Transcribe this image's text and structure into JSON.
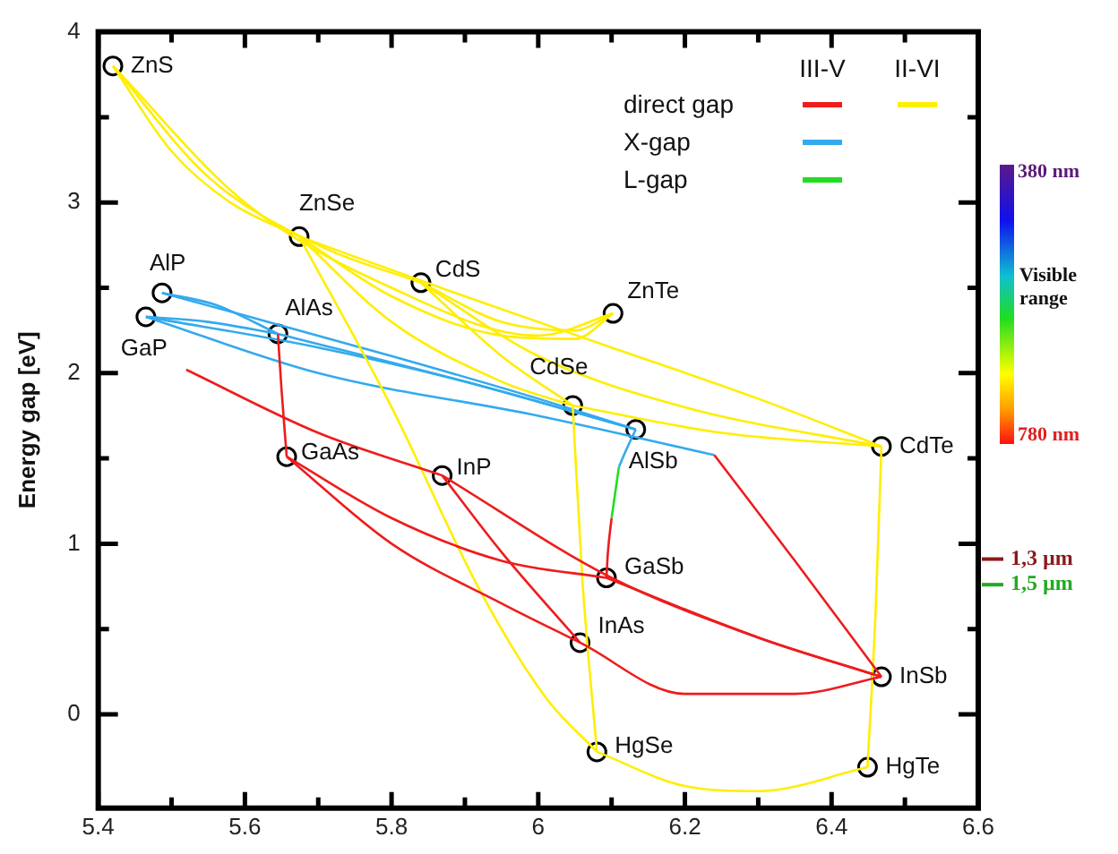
{
  "chart_data": {
    "type": "line",
    "ylabel": "Energy gap [eV]",
    "xlim": [
      5.4,
      6.6
    ],
    "xticks": [
      5.4,
      {
        "value": 5.5,
        "label": null
      },
      5.6,
      {
        "value": 5.7,
        "label": null
      },
      5.8,
      {
        "value": 5.9,
        "label": null
      },
      6,
      {
        "value": 6.1,
        "label": null
      },
      6.2,
      {
        "value": 6.3,
        "label": null
      },
      6.4,
      {
        "value": 6.5,
        "label": null
      },
      6.6
    ],
    "ylim": [
      -0.55,
      4
    ],
    "yticks": [
      0,
      {
        "value": 0.5,
        "label": null
      },
      1,
      {
        "value": 1.5,
        "label": null
      },
      2,
      {
        "value": 2.5,
        "label": null
      },
      3,
      {
        "value": 3.5,
        "label": null
      },
      4
    ],
    "grid": false,
    "marker": "none",
    "line_style": "solid",
    "series": [
      {
        "color": "#ee1c1c",
        "x": [
          5.657,
          5.8,
          5.95,
          6.057
        ],
        "values": [
          1.51,
          1.0,
          0.65,
          0.42
        ]
      },
      {
        "color": "#ffee00",
        "x": [
          5.42,
          5.5,
          5.58,
          5.674
        ],
        "values": [
          3.8,
          3.3,
          3.0,
          2.8
        ]
      },
      {
        "color": "#33aaee",
        "x": [
          5.487,
          5.56,
          5.645
        ],
        "values": [
          2.47,
          2.4,
          2.23
        ]
      },
      {
        "color": "#22dd22",
        "x": [
          6.11,
          6.105,
          6.1
        ],
        "values": [
          1.45,
          1.3,
          1.15
        ]
      },
      {
        "color": "#ee1c1c",
        "x": [
          5.657,
          5.8,
          5.95,
          6.093
        ],
        "values": [
          1.51,
          1.15,
          0.9,
          0.8
        ]
      },
      {
        "color": "#ee1c1c",
        "x": [
          5.869,
          5.95,
          6.057
        ],
        "values": [
          1.4,
          0.95,
          0.42
        ]
      },
      {
        "color": "#ee1c1c",
        "x": [
          5.869,
          6.1,
          6.3,
          6.468
        ],
        "values": [
          1.4,
          0.8,
          0.45,
          0.22
        ]
      },
      {
        "color": "#ee1c1c",
        "x": [
          6.057,
          6.2,
          6.35,
          6.468
        ],
        "values": [
          0.42,
          0.12,
          0.12,
          0.22
        ]
      },
      {
        "color": "#ee1c1c",
        "x": [
          6.093,
          6.3,
          6.468
        ],
        "values": [
          0.8,
          0.45,
          0.22
        ]
      },
      {
        "color": "#ee1c1c",
        "x": [
          5.645,
          5.65,
          5.657
        ],
        "values": [
          2.23,
          1.9,
          1.51
        ]
      },
      {
        "color": "#ee1c1c",
        "x": [
          5.52,
          5.7,
          5.869
        ],
        "values": [
          2.02,
          1.65,
          1.4
        ]
      },
      {
        "color": "#ee1c1c",
        "x": [
          6.24,
          6.35,
          6.468
        ],
        "values": [
          1.52,
          0.9,
          0.22
        ]
      },
      {
        "color": "#ee1c1c",
        "x": [
          6.1,
          6.095,
          6.093
        ],
        "values": [
          1.15,
          0.95,
          0.8
        ]
      },
      {
        "color": "#ffee00",
        "x": [
          5.42,
          5.55,
          5.7,
          5.84
        ],
        "values": [
          3.8,
          3.15,
          2.75,
          2.53
        ]
      },
      {
        "color": "#ffee00",
        "x": [
          5.674,
          5.8,
          5.95,
          6.05,
          6.102
        ],
        "values": [
          2.8,
          2.45,
          2.22,
          2.2,
          2.35
        ]
      },
      {
        "color": "#ffee00",
        "x": [
          5.84,
          5.95,
          6.05,
          6.102
        ],
        "values": [
          2.53,
          2.3,
          2.25,
          2.35
        ]
      },
      {
        "color": "#ffee00",
        "x": [
          5.42,
          5.6,
          5.8,
          6.0,
          6.102
        ],
        "values": [
          3.8,
          3.0,
          2.5,
          2.22,
          2.35
        ]
      },
      {
        "color": "#ffee00",
        "x": [
          5.674,
          5.8,
          5.95,
          6.047
        ],
        "values": [
          2.8,
          2.3,
          1.95,
          1.81
        ]
      },
      {
        "color": "#ffee00",
        "x": [
          5.84,
          5.95,
          6.047
        ],
        "values": [
          2.53,
          2.1,
          1.81
        ]
      },
      {
        "color": "#ffee00",
        "x": [
          5.84,
          6.0,
          6.2,
          6.468
        ],
        "values": [
          2.53,
          2.1,
          1.8,
          1.57
        ]
      },
      {
        "color": "#ffee00",
        "x": [
          5.674,
          5.9,
          6.1,
          6.3,
          6.468
        ],
        "values": [
          2.8,
          2.45,
          2.15,
          1.85,
          1.57
        ]
      },
      {
        "color": "#ffee00",
        "x": [
          6.047,
          6.25,
          6.468
        ],
        "values": [
          1.81,
          1.65,
          1.57
        ]
      },
      {
        "color": "#ffee00",
        "x": [
          5.674,
          5.8,
          5.92,
          6.01,
          6.08
        ],
        "values": [
          2.8,
          1.8,
          0.73,
          0.1,
          -0.22
        ]
      },
      {
        "color": "#ffee00",
        "x": [
          6.047,
          6.06,
          6.08
        ],
        "values": [
          1.81,
          0.8,
          -0.22
        ]
      },
      {
        "color": "#ffee00",
        "x": [
          6.468,
          6.46,
          6.449
        ],
        "values": [
          1.57,
          0.6,
          -0.31
        ]
      },
      {
        "color": "#ffee00",
        "x": [
          6.08,
          6.2,
          6.3,
          6.449
        ],
        "values": [
          -0.22,
          -0.42,
          -0.45,
          -0.31
        ]
      },
      {
        "color": "#33aaee",
        "x": [
          5.465,
          5.55,
          5.645
        ],
        "values": [
          2.33,
          2.3,
          2.23
        ]
      },
      {
        "color": "#33aaee",
        "x": [
          5.487,
          5.8,
          6.0,
          6.133
        ],
        "values": [
          2.47,
          2.1,
          1.85,
          1.67
        ]
      },
      {
        "color": "#33aaee",
        "x": [
          5.465,
          5.7,
          5.9,
          6.133
        ],
        "values": [
          2.33,
          2.15,
          1.95,
          1.67
        ]
      },
      {
        "color": "#33aaee",
        "x": [
          5.645,
          5.9,
          6.133
        ],
        "values": [
          2.23,
          1.95,
          1.67
        ]
      },
      {
        "color": "#33aaee",
        "x": [
          5.465,
          5.7,
          6.0,
          6.24
        ],
        "values": [
          2.33,
          2.0,
          1.75,
          1.52
        ]
      },
      {
        "color": "#33aaee",
        "x": [
          6.133,
          6.12,
          6.11
        ],
        "values": [
          1.67,
          1.55,
          1.45
        ]
      },
      {
        "type": "scatter",
        "marker": "circle",
        "color": "#000000",
        "x": [
          5.42,
          5.674,
          5.84,
          6.102,
          6.047,
          6.468,
          6.08,
          6.449,
          5.487,
          5.465,
          5.645,
          5.657,
          5.869,
          6.133,
          6.093,
          6.057,
          6.468
        ],
        "values": [
          3.8,
          2.8,
          2.53,
          2.35,
          1.81,
          1.57,
          -0.22,
          -0.31,
          2.47,
          2.33,
          2.23,
          1.51,
          1.4,
          1.67,
          0.8,
          0.42,
          0.22
        ]
      }
    ],
    "ref_lines": [
      {
        "axis": "y",
        "value": 0.91,
        "label": "1,3 µm",
        "color": "#8b1a1a"
      },
      {
        "axis": "y",
        "value": 0.76,
        "label": "1,5 µm",
        "color": "#22aa22"
      }
    ],
    "annotations": [
      "III-V",
      "II-VI",
      "direct gap",
      "X-gap",
      "L-gap",
      "380 nm",
      "780 nm",
      "Visible range",
      {
        "text": "ZnS",
        "x": 5.42,
        "y": 3.8
      },
      {
        "text": "ZnSe",
        "x": 5.674,
        "y": 2.8
      },
      {
        "text": "CdS",
        "x": 5.84,
        "y": 2.53
      },
      {
        "text": "ZnTe",
        "x": 6.102,
        "y": 2.35
      },
      {
        "text": "CdSe",
        "x": 6.047,
        "y": 1.81
      },
      {
        "text": "CdTe",
        "x": 6.468,
        "y": 1.57
      },
      {
        "text": "HgSe",
        "x": 6.08,
        "y": -0.22
      },
      {
        "text": "HgTe",
        "x": 6.449,
        "y": -0.31
      },
      {
        "text": "AlP",
        "x": 5.487,
        "y": 2.47
      },
      {
        "text": "GaP",
        "x": 5.465,
        "y": 2.33
      },
      {
        "text": "AlAs",
        "x": 5.645,
        "y": 2.23
      },
      {
        "text": "GaAs",
        "x": 5.657,
        "y": 1.51
      },
      {
        "text": "InP",
        "x": 5.869,
        "y": 1.4
      },
      {
        "text": "AlSb",
        "x": 6.133,
        "y": 1.67
      },
      {
        "text": "GaSb",
        "x": 6.093,
        "y": 0.8
      },
      {
        "text": "InAs",
        "x": 6.057,
        "y": 0.42
      },
      {
        "text": "InSb",
        "x": 6.468,
        "y": 0.22
      }
    ]
  }
}
